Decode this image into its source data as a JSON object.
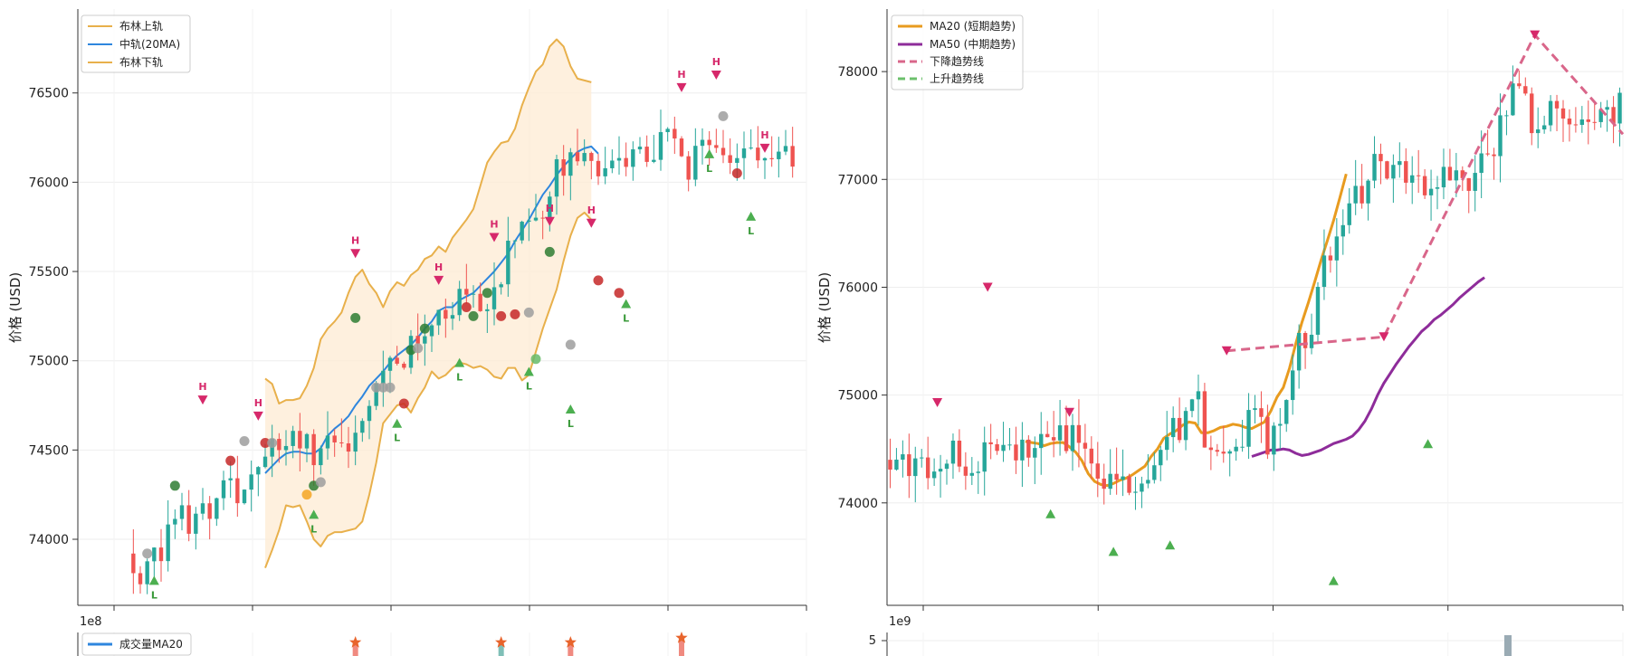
{
  "colors": {
    "up": "#26a69a",
    "down": "#ef5350",
    "boll_band": "#e8b04b",
    "boll_mid": "#2e86de",
    "boll_fill": "#fdebd3",
    "high_marker": "#d6286a",
    "low_marker": "#4caf50",
    "ma20": "#e89b1f",
    "ma50": "#8e2c9a",
    "down_trend": "#d9668a",
    "up_trend": "#6cc06c",
    "vol_ma": "#2e86de",
    "vol_bar": "#f08a80",
    "vol_bar_up": "#7fbfb7",
    "vol_bar_right": "#9aabb4",
    "star": "#e8642c",
    "axis": "#333333",
    "grid": "#eeeeee"
  },
  "chart_data": [
    {
      "type": "candlestick",
      "ylabel": "价格 (USD)",
      "ylim": [
        73630,
        76970
      ],
      "xlim": [
        -8,
        97
      ],
      "y_ticks": [
        74000,
        74500,
        75000,
        75500,
        76000,
        76500
      ],
      "x_tick_count": 6,
      "legend_position": "top-left",
      "legend": [
        "布林上轨",
        "中轨(20MA)",
        "布林下轨"
      ],
      "series": [
        {
          "name": "布林上轨",
          "start": 19,
          "values": [
            74900,
            74870,
            74760,
            74780,
            74780,
            74790,
            74860,
            74960,
            75120,
            75180,
            75220,
            75270,
            75380,
            75470,
            75510,
            75430,
            75380,
            75300,
            75390,
            75440,
            75420,
            75480,
            75510,
            75570,
            75590,
            75640,
            75610,
            75690,
            75740,
            75790,
            75850,
            75980,
            76110,
            76170,
            76220,
            76230,
            76300,
            76430,
            76530,
            76620,
            76660,
            76760,
            76800,
            76760,
            76650,
            76580,
            76570,
            76560
          ]
        },
        {
          "name": "中轨(20MA)",
          "start": 19,
          "values": [
            74370,
            74410,
            74450,
            74480,
            74490,
            74490,
            74480,
            74480,
            74510,
            74580,
            74620,
            74650,
            74690,
            74750,
            74800,
            74860,
            74900,
            74940,
            74990,
            75030,
            75060,
            75090,
            75130,
            75180,
            75220,
            75280,
            75300,
            75300,
            75340,
            75360,
            75380,
            75420,
            75460,
            75500,
            75550,
            75600,
            75670,
            75730,
            75790,
            75860,
            75930,
            75980,
            76040,
            76090,
            76130,
            76170,
            76190,
            76200,
            76160
          ]
        },
        {
          "name": "布林下轨",
          "start": 19,
          "values": [
            73840,
            73940,
            74050,
            74190,
            74180,
            74190,
            74100,
            74000,
            73960,
            74020,
            74040,
            74040,
            74050,
            74060,
            74100,
            74250,
            74430,
            74650,
            74700,
            74750,
            74760,
            74710,
            74790,
            74850,
            74940,
            74900,
            74920,
            74960,
            74990,
            74980,
            74960,
            74970,
            74950,
            74910,
            74900,
            74960,
            74960,
            74890,
            74920,
            75050,
            75180,
            75290,
            75400,
            75560,
            75700,
            75800,
            75830,
            75790
          ]
        }
      ],
      "highs_label": "H",
      "lows_label": "L",
      "high_markers": [
        [
          10,
          74780
        ],
        [
          18,
          74690
        ],
        [
          32,
          75600
        ],
        [
          44,
          75450
        ],
        [
          52,
          75690
        ],
        [
          60,
          75780
        ],
        [
          66,
          75770
        ],
        [
          79,
          76530
        ],
        [
          84,
          76600
        ],
        [
          91,
          76190
        ]
      ],
      "low_markers": [
        [
          3,
          73770
        ],
        [
          26,
          74140
        ],
        [
          38,
          74650
        ],
        [
          47,
          74990
        ],
        [
          57,
          74940
        ],
        [
          63,
          74730
        ],
        [
          71,
          75320
        ],
        [
          83,
          76160
        ],
        [
          89,
          75810
        ]
      ]
    },
    {
      "type": "candlestick",
      "ylabel": "价格 (USD)",
      "ylim": [
        73050,
        78580
      ],
      "xlim": [
        0,
        117
      ],
      "y_ticks": [
        74000,
        75000,
        76000,
        77000,
        78000
      ],
      "x_tick_count": 5,
      "legend_position": "top-left",
      "legend": [
        "MA20 (短期趋势)",
        "MA50 (中期趋势)",
        "下降趋势线",
        "上升趋势线"
      ],
      "series": [
        {
          "name": "MA20 (短期趋势)",
          "start": 22,
          "values": [
            74570,
            74560,
            74550,
            74530,
            74550,
            74560,
            74560,
            74520,
            74470,
            74390,
            74270,
            74200,
            74170,
            74160,
            74180,
            74210,
            74230,
            74260,
            74300,
            74340,
            74430,
            74500,
            74600,
            74640,
            74670,
            74720,
            74750,
            74740,
            74650,
            74650,
            74670,
            74700,
            74710,
            74730,
            74720,
            74700,
            74690,
            74720,
            74750,
            74850,
            74980,
            75070,
            75250,
            75480,
            75680,
            75860,
            76050,
            76250,
            76430,
            76620,
            76830,
            77050
          ]
        },
        {
          "name": "MA50 (中期趋势)",
          "start": 58,
          "values": [
            74430,
            74450,
            74470,
            74490,
            74490,
            74500,
            74490,
            74460,
            74440,
            74450,
            74470,
            74490,
            74520,
            74550,
            74570,
            74590,
            74620,
            74680,
            74760,
            74870,
            75000,
            75110,
            75200,
            75290,
            75370,
            75450,
            75520,
            75590,
            75640,
            75700,
            75740,
            75790,
            75840,
            75900,
            75950,
            76000,
            76050,
            76090
          ]
        },
        {
          "name": "下降趋势线",
          "points": [
            [
              54,
              75410
            ],
            [
              79,
              75540
            ],
            [
              103,
              78340
            ],
            [
              117,
              77420
            ]
          ]
        }
      ],
      "high_markers": [
        [
          8,
          74930
        ],
        [
          16,
          76000
        ],
        [
          29,
          74840
        ],
        [
          54,
          75410
        ],
        [
          79,
          75540
        ],
        [
          103,
          78340
        ]
      ],
      "low_markers": [
        [
          26,
          73900
        ],
        [
          36,
          73550
        ],
        [
          45,
          73610
        ],
        [
          71,
          73280
        ],
        [
          86,
          74550
        ]
      ]
    }
  ],
  "volume_panels": [
    {
      "exponent_label": "1e8",
      "legend": [
        "成交量MA20"
      ],
      "y_tick": ""
    },
    {
      "exponent_label": "1e9",
      "legend": [],
      "y_tick": "5"
    }
  ]
}
